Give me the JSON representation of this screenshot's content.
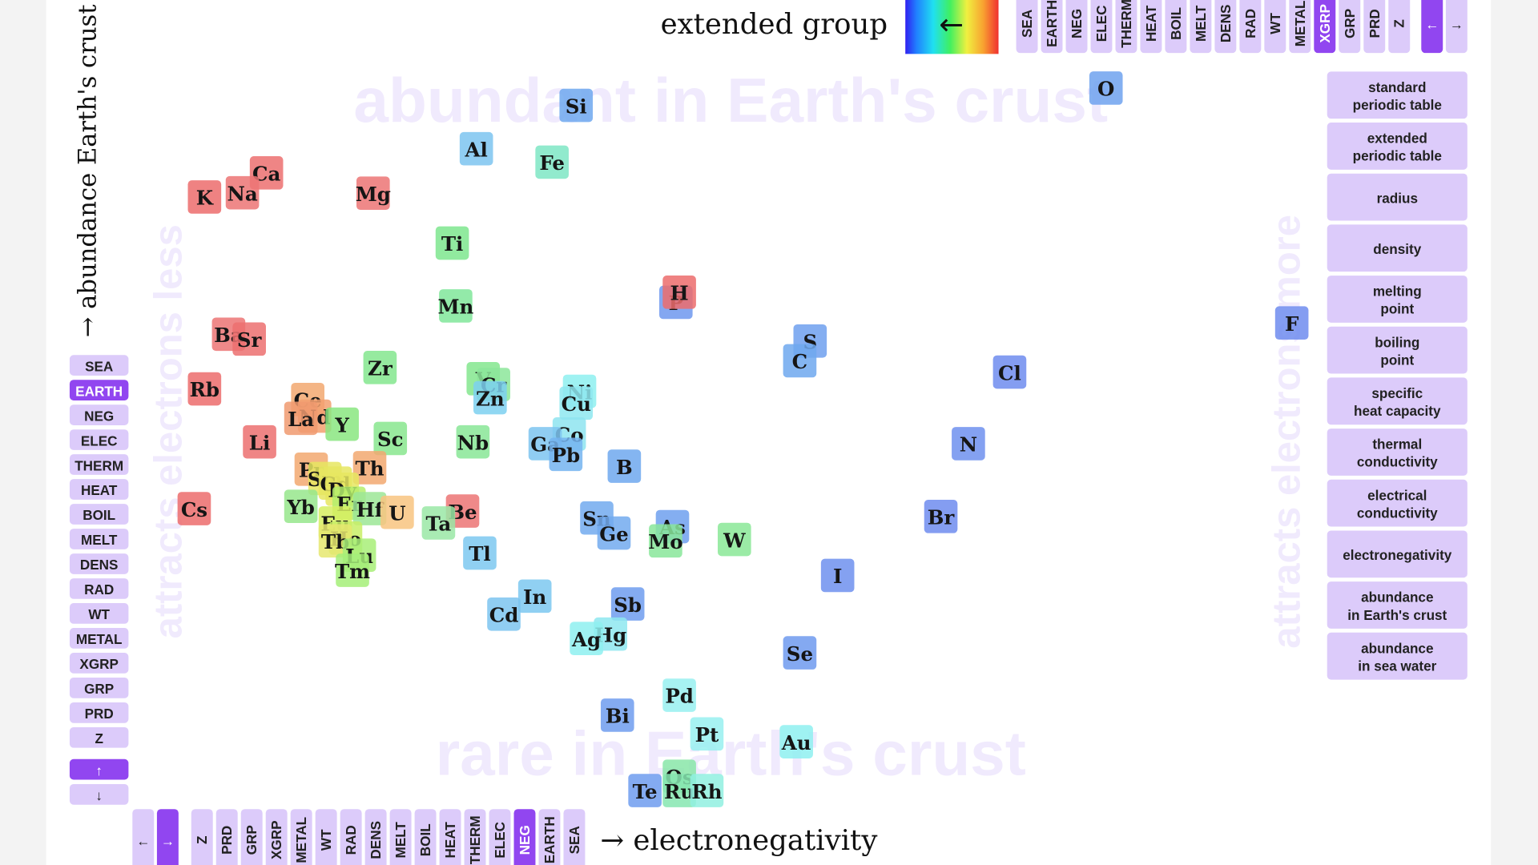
{
  "chart_data": {
    "type": "scatter",
    "x_label": "→ electronegativity",
    "y_label": "→ abundance Earth's crust",
    "annotations": [
      "abundant in Earth's crust",
      "rare in Earth's crust",
      "attracts electrons less",
      "attracts electrons more"
    ],
    "log_y": true,
    "xlim": [
      0.79,
      3.98
    ],
    "ylim": [
      0.0005,
      1000000
    ],
    "labels": [
      "O",
      "Si",
      "Al",
      "Fe",
      "Ca",
      "Na",
      "Mg",
      "K",
      "Ti",
      "P",
      "H",
      "Mn",
      "F",
      "Ba",
      "Sr",
      "S",
      "C",
      "Zr",
      "Cl",
      "V",
      "Cr",
      "Rb",
      "Ni",
      "Zn",
      "Ce",
      "Cu",
      "Nd",
      "La",
      "Y",
      "N",
      "Co",
      "Li",
      "Nb",
      "Ga",
      "Sc",
      "Pb",
      "B",
      "Pr",
      "Th",
      "Sm",
      "Gd",
      "Dy",
      "Er",
      "Yb",
      "Hf",
      "Cs",
      "Be",
      "U",
      "Br",
      "Ta",
      "Sn",
      "Eu",
      "Ge",
      "As",
      "Mo",
      "W",
      "Ho",
      "Tb",
      "Tl",
      "Lu",
      "Tm",
      "I",
      "In",
      "Sb",
      "Cd",
      "Hg",
      "Ag",
      "Se",
      "Pd",
      "Bi",
      "Pt",
      "Au",
      "Os",
      "Te",
      "Ru",
      "Rh"
    ],
    "x": [
      3.44,
      1.9,
      1.61,
      1.83,
      1.0,
      0.93,
      1.31,
      0.82,
      1.54,
      2.19,
      2.2,
      1.55,
      3.98,
      0.89,
      0.95,
      2.58,
      2.55,
      1.33,
      3.16,
      1.63,
      1.66,
      0.82,
      1.91,
      1.65,
      1.12,
      1.9,
      1.14,
      1.1,
      1.22,
      3.04,
      1.88,
      0.98,
      1.6,
      1.81,
      1.36,
      1.87,
      2.04,
      1.13,
      1.3,
      1.17,
      1.2,
      1.22,
      1.24,
      1.1,
      1.3,
      0.79,
      1.57,
      1.38,
      2.96,
      1.5,
      1.96,
      1.2,
      2.01,
      2.18,
      2.16,
      2.36,
      1.23,
      1.2,
      1.62,
      1.27,
      1.25,
      2.66,
      1.78,
      2.05,
      1.69,
      2.0,
      1.93,
      2.55,
      2.2,
      2.02,
      2.28,
      2.54,
      2.2,
      2.1,
      2.2,
      2.28
    ],
    "values": [
      461000,
      282000,
      82300,
      56300,
      41500,
      23600,
      23300,
      20900,
      5650,
      1050,
      1400,
      950,
      585,
      425,
      370,
      350,
      200,
      165,
      145,
      120,
      102,
      90,
      84,
      70,
      66.5,
      60,
      41.5,
      39,
      33,
      19,
      25,
      20,
      20,
      19,
      22,
      14,
      10,
      9.2,
      9.6,
      7.05,
      6.2,
      5.2,
      3.5,
      3.2,
      3,
      3,
      2.8,
      2.7,
      2.4,
      2,
      2.3,
      2,
      1.5,
      1.8,
      1.2,
      1.25,
      1.3,
      1.2,
      0.85,
      0.8,
      0.52,
      0.45,
      0.25,
      0.2,
      0.15,
      0.085,
      0.075,
      0.05,
      0.015,
      0.0085,
      0.005,
      0.004,
      0.0015,
      0.001,
      0.001,
      0.001
    ],
    "colors": [
      "#6fa2ee",
      "#6fa8ee",
      "#7cc4f0",
      "#7ee6c4",
      "#ec7070",
      "#ec7474",
      "#ec7474",
      "#ec6c6c",
      "#7ee68e",
      "#6f98ee",
      "#ec6c6c",
      "#80e69a",
      "#6f8cee",
      "#ec7474",
      "#ec7070",
      "#6fa0ee",
      "#6fa8ee",
      "#84e68e",
      "#6f8cee",
      "#84e68e",
      "#8ce69a",
      "#ec6c6c",
      "#8ef0f0",
      "#7cd0f0",
      "#f2a870",
      "#8ee8f0",
      "#f2a070",
      "#f09a70",
      "#8ae680",
      "#6f90ee",
      "#8ee4f0",
      "#ec7070",
      "#88e696",
      "#7cc4f0",
      "#88e68e",
      "#74b4f0",
      "#6fa8ee",
      "#f2a870",
      "#f2a870",
      "#e6e660",
      "#e6e660",
      "#e6e660",
      "#b4ee6c",
      "#96e68c",
      "#9ce696",
      "#ec6c6c",
      "#ec7474",
      "#f8c480",
      "#6f8cee",
      "#9ae8a6",
      "#72aaee",
      "#d6ee60",
      "#72aaee",
      "#6fa0ee",
      "#88e69a",
      "#8ae896",
      "#c8ee66",
      "#e6e870",
      "#7cc8f0",
      "#a8ee78",
      "#a4ee78",
      "#6f90ee",
      "#7cc8f0",
      "#6f9cee",
      "#7cc4f0",
      "#8ee8f0",
      "#8ef0f0",
      "#6f9aee",
      "#98f0f0",
      "#6f9cee",
      "#98f0f0",
      "#8ef0f0",
      "#88e6a8",
      "#6f9cee",
      "#86e6b0",
      "#90f0e0"
    ]
  },
  "ui": {
    "color_legend": "extended group",
    "color_legend_arrow": "←",
    "top_buttons": [
      {
        "label": "SEA"
      },
      {
        "label": "EARTH"
      },
      {
        "label": "NEG"
      },
      {
        "label": "ELEC"
      },
      {
        "label": "THERM"
      },
      {
        "label": "HEAT"
      },
      {
        "label": "BOIL"
      },
      {
        "label": "MELT"
      },
      {
        "label": "DENS"
      },
      {
        "label": "RAD"
      },
      {
        "label": "WT"
      },
      {
        "label": "METAL"
      },
      {
        "label": "XGRP",
        "active": true
      },
      {
        "label": "GRP"
      },
      {
        "label": "PRD"
      },
      {
        "label": "Z"
      }
    ],
    "top_arrows": [
      {
        "label": "←",
        "active": true
      },
      {
        "label": "→"
      }
    ],
    "left_buttons": [
      {
        "label": "SEA"
      },
      {
        "label": "EARTH",
        "active": true
      },
      {
        "label": "NEG"
      },
      {
        "label": "ELEC"
      },
      {
        "label": "THERM"
      },
      {
        "label": "HEAT"
      },
      {
        "label": "BOIL"
      },
      {
        "label": "MELT"
      },
      {
        "label": "DENS"
      },
      {
        "label": "RAD"
      },
      {
        "label": "WT"
      },
      {
        "label": "METAL"
      },
      {
        "label": "XGRP"
      },
      {
        "label": "GRP"
      },
      {
        "label": "PRD"
      },
      {
        "label": "Z"
      }
    ],
    "left_arrows": [
      {
        "label": "↑",
        "active": true
      },
      {
        "label": "↓"
      }
    ],
    "bottom_arrows": [
      {
        "label": "←"
      },
      {
        "label": "→",
        "active": true
      }
    ],
    "bottom_buttons": [
      {
        "label": "Z"
      },
      {
        "label": "PRD"
      },
      {
        "label": "GRP"
      },
      {
        "label": "XGRP"
      },
      {
        "label": "METAL"
      },
      {
        "label": "WT"
      },
      {
        "label": "RAD"
      },
      {
        "label": "DENS"
      },
      {
        "label": "MELT"
      },
      {
        "label": "BOIL"
      },
      {
        "label": "HEAT"
      },
      {
        "label": "THERM"
      },
      {
        "label": "ELEC"
      },
      {
        "label": "NEG",
        "active": true
      },
      {
        "label": "EARTH"
      },
      {
        "label": "SEA"
      }
    ],
    "property_buttons": [
      {
        "lines": [
          "standard",
          "periodic table"
        ]
      },
      {
        "lines": [
          "extended",
          "periodic table"
        ]
      },
      {
        "lines": [
          "radius"
        ]
      },
      {
        "lines": [
          "density"
        ]
      },
      {
        "lines": [
          "melting",
          "point"
        ]
      },
      {
        "lines": [
          "boiling",
          "point"
        ]
      },
      {
        "lines": [
          "specific",
          "heat capacity"
        ]
      },
      {
        "lines": [
          "thermal",
          "conductivity"
        ]
      },
      {
        "lines": [
          "electrical",
          "conductivity"
        ]
      },
      {
        "lines": [
          "electronegativity"
        ]
      },
      {
        "lines": [
          "abundance",
          "in Earth's crust"
        ]
      },
      {
        "lines": [
          "abundance",
          "in sea water"
        ]
      }
    ]
  }
}
